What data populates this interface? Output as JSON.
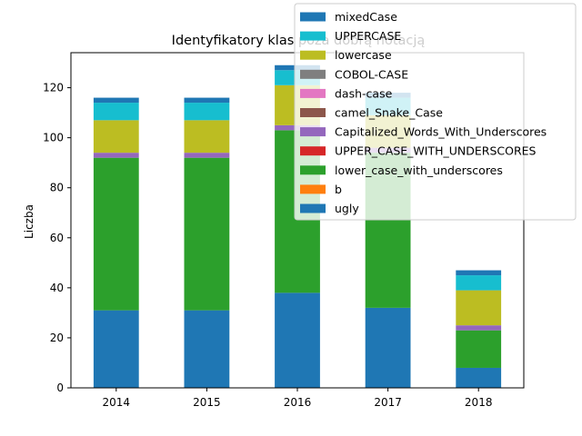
{
  "chart_data": {
    "type": "bar",
    "stacked": true,
    "title": "Identyfikatory klas poza dobrą notacją",
    "xlabel": "",
    "ylabel": "Liczba",
    "categories": [
      "2014",
      "2015",
      "2016",
      "2017",
      "2018"
    ],
    "ylim": [
      0,
      134
    ],
    "yticks": [
      0,
      20,
      40,
      60,
      80,
      100,
      120
    ],
    "grid": false,
    "legend_position": "upper-right",
    "series": [
      {
        "name": "ugly",
        "color": "#1f77b4",
        "values": [
          31,
          31,
          38,
          32,
          8
        ]
      },
      {
        "name": "b",
        "color": "#ff7f0e",
        "values": [
          0,
          0,
          0,
          0,
          0
        ]
      },
      {
        "name": "lower_case_with_underscores",
        "color": "#2ca02c",
        "values": [
          61,
          61,
          65,
          62,
          15
        ]
      },
      {
        "name": "UPPER_CASE_WITH_UNDERSCORES",
        "color": "#d62728",
        "values": [
          0,
          0,
          0,
          0,
          0
        ]
      },
      {
        "name": "Capitalized_Words_With_Underscores",
        "color": "#9467bd",
        "values": [
          2,
          2,
          2,
          2,
          2
        ]
      },
      {
        "name": "camel_Snake_Case",
        "color": "#8c564b",
        "values": [
          0,
          0,
          0,
          0,
          0
        ]
      },
      {
        "name": "dash-case",
        "color": "#e377c2",
        "values": [
          0,
          0,
          0,
          0,
          0
        ]
      },
      {
        "name": "COBOL-CASE",
        "color": "#7f7f7f",
        "values": [
          0,
          0,
          0,
          0,
          0
        ]
      },
      {
        "name": "lowercase",
        "color": "#bcbd22",
        "values": [
          13,
          13,
          16,
          13,
          14
        ]
      },
      {
        "name": "UPPERCASE",
        "color": "#17becf",
        "values": [
          7,
          7,
          6,
          7,
          6
        ]
      },
      {
        "name": "mixedCase",
        "color": "#1f77b4",
        "values": [
          2,
          2,
          2,
          2,
          2
        ]
      }
    ],
    "legend_order": [
      "mixedCase",
      "UPPERCASE",
      "lowercase",
      "COBOL-CASE",
      "dash-case",
      "camel_Snake_Case",
      "Capitalized_Words_With_Underscores",
      "UPPER_CASE_WITH_UNDERSCORES",
      "lower_case_with_underscores",
      "b",
      "ugly"
    ]
  }
}
